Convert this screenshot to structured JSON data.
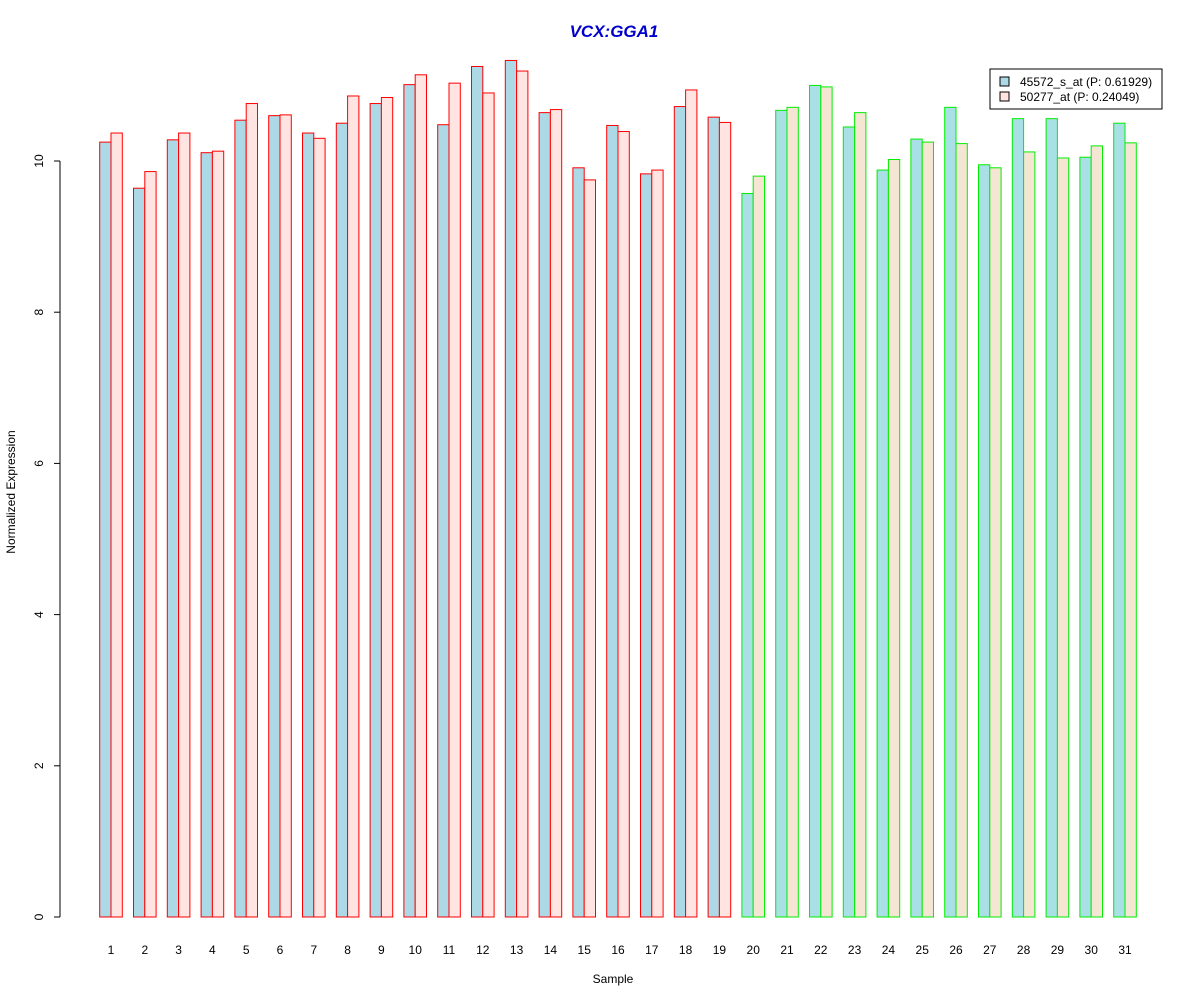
{
  "chart_data": {
    "type": "bar",
    "title": "VCX:GGA1",
    "title_color": "#0000CC",
    "xlabel": "Sample",
    "ylabel": "Normalized Expression",
    "ylim": [
      0,
      11.4
    ],
    "yticks": [
      0,
      2,
      4,
      6,
      8,
      10
    ],
    "grid": false,
    "legend_position": "top-right",
    "categories": [
      "1",
      "2",
      "3",
      "4",
      "5",
      "6",
      "7",
      "8",
      "9",
      "10",
      "11",
      "12",
      "13",
      "14",
      "15",
      "16",
      "17",
      "18",
      "19",
      "20",
      "21",
      "22",
      "23",
      "24",
      "25",
      "26",
      "27",
      "28",
      "29",
      "30",
      "31"
    ],
    "groups": [
      {
        "range": [
          1,
          19
        ],
        "border_color": "#FF0000",
        "fills": [
          "#ADD8E6",
          "#FFE4E1"
        ]
      },
      {
        "range": [
          20,
          31
        ],
        "border_color": "#00EE00",
        "fills": [
          "#A8E0E6",
          "#F5E6D3"
        ]
      }
    ],
    "series": [
      {
        "name": "45572_s_at (P: 0.61929)",
        "legend_fill": "#ADD8E6",
        "values": [
          10.25,
          9.64,
          10.28,
          10.11,
          10.54,
          10.6,
          10.37,
          10.5,
          10.76,
          11.01,
          10.48,
          11.25,
          11.33,
          10.64,
          9.91,
          10.47,
          9.83,
          10.72,
          10.58,
          9.57,
          10.67,
          11.0,
          10.45,
          9.88,
          10.29,
          10.71,
          9.95,
          10.56,
          10.56,
          10.05,
          10.5
        ]
      },
      {
        "name": "50277_at (P: 0.24049)",
        "legend_fill": "#FFE4E1",
        "values": [
          10.37,
          9.86,
          10.37,
          10.13,
          10.76,
          10.61,
          10.3,
          10.86,
          10.84,
          11.14,
          11.03,
          10.9,
          11.19,
          10.68,
          9.75,
          10.39,
          9.88,
          10.94,
          10.51,
          9.8,
          10.71,
          10.98,
          10.64,
          10.02,
          10.25,
          10.23,
          9.91,
          10.12,
          10.04,
          10.2,
          10.24
        ]
      }
    ]
  }
}
